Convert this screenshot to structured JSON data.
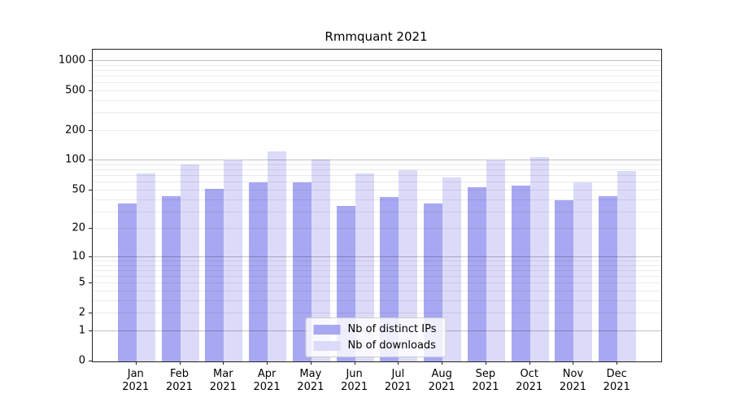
{
  "figure": {
    "title": "Rmmquant 2021"
  },
  "chart_data": {
    "type": "bar",
    "title": "Rmmquant 2021",
    "categories": [
      "Jan 2021",
      "Feb 2021",
      "Mar 2021",
      "Apr 2021",
      "May 2021",
      "Jun 2021",
      "Jul 2021",
      "Aug 2021",
      "Sep 2021",
      "Oct 2021",
      "Nov 2021",
      "Dec 2021"
    ],
    "series": [
      {
        "name": "Nb of distinct IPs",
        "color": "#a8a8f2",
        "values": [
          37,
          44,
          52,
          60,
          60,
          35,
          43,
          37,
          54,
          56,
          40,
          44
        ]
      },
      {
        "name": "Nb of downloads",
        "color": "#dbdbf9",
        "values": [
          75,
          92,
          100,
          125,
          102,
          75,
          81,
          68,
          100,
          108,
          61,
          79
        ]
      }
    ],
    "xlabel": "",
    "ylabel": "",
    "y_ticks": [
      0,
      1,
      2,
      5,
      10,
      20,
      50,
      100,
      200,
      500,
      1000
    ],
    "y_scale": "log1p",
    "ylim": [
      0,
      1300
    ],
    "grid": true,
    "legend": {
      "position": "lower center",
      "entries": [
        "Nb of distinct IPs",
        "Nb of downloads"
      ]
    }
  }
}
